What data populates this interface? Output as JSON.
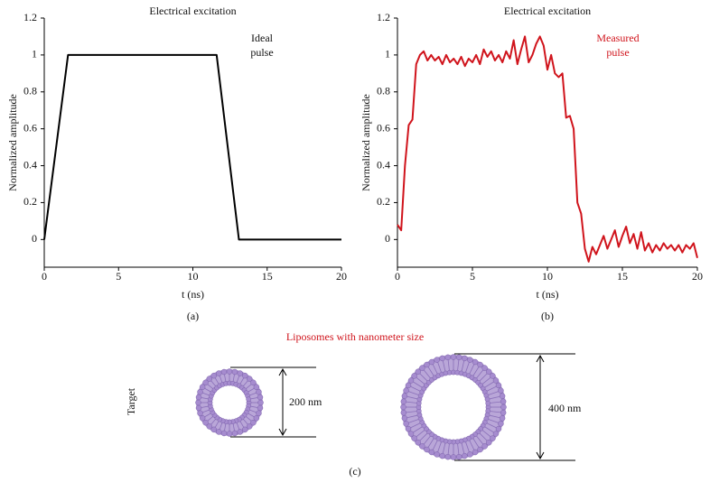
{
  "chart_data": [
    {
      "type": "line",
      "title": "Electrical excitation",
      "annotation": [
        "Ideal",
        "pulse"
      ],
      "ylabel": "Normalized amplitude",
      "xlabel": "t (ns)",
      "panel": "(a)",
      "color": "#000000",
      "x": [
        0,
        1.6,
        11.6,
        13.1,
        20
      ],
      "values": [
        0,
        1,
        1,
        0,
        0
      ],
      "xlim": [
        0,
        20
      ],
      "ylim": [
        -0.15,
        1.2
      ],
      "xticks": [
        0,
        5,
        10,
        15,
        20
      ],
      "yticks": [
        0,
        0.2,
        0.4,
        0.6,
        0.8,
        1,
        1.2
      ]
    },
    {
      "type": "line",
      "title": "Electrical excitation",
      "annotation": [
        "Measured",
        "pulse"
      ],
      "annotation_color": "#d0141c",
      "ylabel": "Normalized amplitude",
      "xlabel": "t (ns)",
      "panel": "(b)",
      "color": "#d0141c",
      "x": [
        0,
        0.25,
        0.5,
        0.75,
        1,
        1.25,
        1.5,
        1.75,
        2,
        2.25,
        2.5,
        2.75,
        3,
        3.25,
        3.5,
        3.75,
        4,
        4.25,
        4.5,
        4.75,
        5,
        5.25,
        5.5,
        5.75,
        6,
        6.25,
        6.5,
        6.75,
        7,
        7.25,
        7.5,
        7.75,
        8,
        8.25,
        8.5,
        8.75,
        9,
        9.25,
        9.5,
        9.75,
        10,
        10.25,
        10.5,
        10.75,
        11,
        11.25,
        11.5,
        11.75,
        12,
        12.25,
        12.5,
        12.75,
        13,
        13.25,
        13.5,
        13.75,
        14,
        14.25,
        14.5,
        14.75,
        15,
        15.25,
        15.5,
        15.75,
        16,
        16.25,
        16.5,
        16.75,
        17,
        17.25,
        17.5,
        17.75,
        18,
        18.25,
        18.5,
        18.75,
        19,
        19.25,
        19.5,
        19.75,
        20
      ],
      "values": [
        0.08,
        0.05,
        0.4,
        0.62,
        0.65,
        0.95,
        1.0,
        1.02,
        0.97,
        1.0,
        0.97,
        0.99,
        0.95,
        1.0,
        0.96,
        0.98,
        0.95,
        0.99,
        0.94,
        0.98,
        0.96,
        1.0,
        0.95,
        1.03,
        0.99,
        1.02,
        0.97,
        1.0,
        0.96,
        1.02,
        0.98,
        1.08,
        0.95,
        1.03,
        1.1,
        0.96,
        1.0,
        1.06,
        1.1,
        1.05,
        0.92,
        1.0,
        0.9,
        0.88,
        0.9,
        0.66,
        0.67,
        0.6,
        0.2,
        0.14,
        -0.05,
        -0.12,
        -0.04,
        -0.08,
        -0.03,
        0.02,
        -0.05,
        0.0,
        0.05,
        -0.04,
        0.02,
        0.07,
        -0.02,
        0.03,
        -0.05,
        0.04,
        -0.06,
        -0.02,
        -0.07,
        -0.03,
        -0.06,
        -0.02,
        -0.05,
        -0.03,
        -0.06,
        -0.03,
        -0.07,
        -0.03,
        -0.05,
        -0.02,
        -0.1
      ],
      "xlim": [
        0,
        20
      ],
      "ylim": [
        -0.15,
        1.2
      ],
      "xticks": [
        0,
        5,
        10,
        15,
        20
      ],
      "yticks": [
        0,
        0.2,
        0.4,
        0.6,
        0.8,
        1,
        1.2
      ]
    }
  ],
  "diagram": {
    "title": "Liposomes with nanometer size",
    "target": "Target",
    "small_size": "200 nm",
    "large_size": "400 nm",
    "panel": "(c)"
  }
}
